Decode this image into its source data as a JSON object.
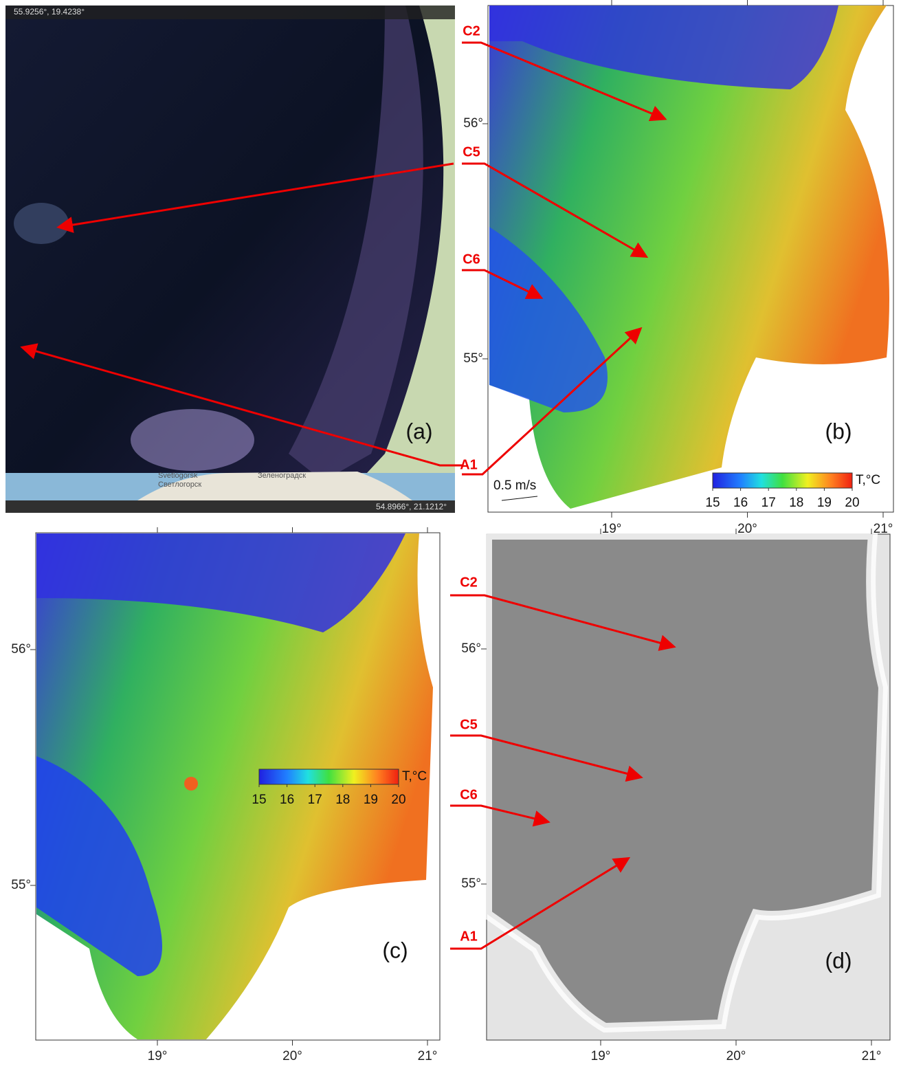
{
  "panels": {
    "a": {
      "label": "(a)",
      "coord_top": "55.9256°,  19.4238°",
      "coord_bottom": "54.8966°,  21.1212°",
      "places": [
        "Svetlogorsk",
        "Светлогорск",
        "Зеленоградск"
      ]
    },
    "b": {
      "label": "(b)",
      "annotations": [
        "C2",
        "C5",
        "C6",
        "A1"
      ],
      "scale_label": "0.5 m/s",
      "xticks": [
        {
          "value": 19,
          "label": "19°"
        },
        {
          "value": 20,
          "label": "20°"
        },
        {
          "value": 21,
          "label": "21°"
        }
      ],
      "yticks": [
        {
          "value": 56,
          "label": "56°"
        },
        {
          "value": 55,
          "label": "55°"
        }
      ],
      "colorbar": {
        "title": "T,°C",
        "ticks": [
          15,
          16,
          17,
          18,
          19,
          20
        ]
      }
    },
    "c": {
      "label": "(c)",
      "xticks": [
        {
          "value": 19,
          "label": "19°"
        },
        {
          "value": 20,
          "label": "20°"
        },
        {
          "value": 21,
          "label": "21°"
        }
      ],
      "yticks": [
        {
          "value": 56,
          "label": "56°"
        },
        {
          "value": 55,
          "label": "55°"
        }
      ],
      "colorbar": {
        "title": "T,°C",
        "ticks": [
          15,
          16,
          17,
          18,
          19,
          20
        ]
      }
    },
    "d": {
      "label": "(d)",
      "annotations": [
        "C2",
        "C5",
        "C6",
        "A1"
      ],
      "xticks": [
        {
          "value": 19,
          "label": "19°"
        },
        {
          "value": 20,
          "label": "20°"
        },
        {
          "value": 21,
          "label": "21°"
        }
      ],
      "yticks": [
        {
          "value": 56,
          "label": "56°"
        },
        {
          "value": 55,
          "label": "55°"
        }
      ]
    }
  }
}
